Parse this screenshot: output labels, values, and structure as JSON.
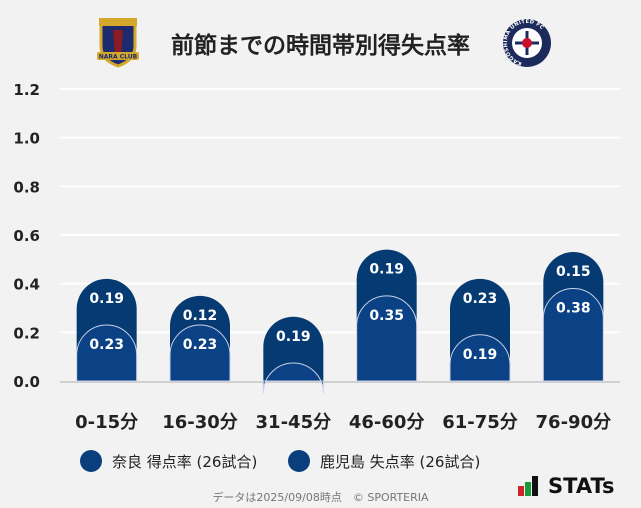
{
  "title": "前節までの時間帯別得失点率",
  "teams": {
    "home_logo_text": "NARA CLUB",
    "away_logo_text": "KAGOSHIMA UNITED FC"
  },
  "legend": [
    "奈良 得点率 (26試合)",
    "鹿児島 失点率 (26試合)"
  ],
  "footer": "データは2025/09/08時点　© SPORTERIA",
  "brand": "STATs",
  "colors": {
    "nara": "#0b4185",
    "kagoshima": "#063a72",
    "grid": "#ffffff",
    "bg": "#f2f2f2"
  },
  "chart_data": {
    "type": "bar",
    "stacked": true,
    "title": "前節までの時間帯別得失点率",
    "categories": [
      "0-15分",
      "16-30分",
      "31-45分",
      "46-60分",
      "61-75分",
      "76-90分"
    ],
    "series": [
      {
        "name": "奈良 得点率 (26試合)",
        "values": [
          0.23,
          0.23,
          0,
          0.35,
          0.19,
          0.38
        ]
      },
      {
        "name": "鹿児島 失点率 (26試合)",
        "values": [
          0.19,
          0.12,
          0.19,
          0.19,
          0.23,
          0.15
        ]
      }
    ],
    "ylim": [
      0,
      1.2
    ],
    "yticks": [
      "0.0",
      "0.2",
      "0.4",
      "0.6",
      "0.8",
      "1.0",
      "1.2"
    ],
    "grid": true,
    "legend_position": "bottom"
  }
}
